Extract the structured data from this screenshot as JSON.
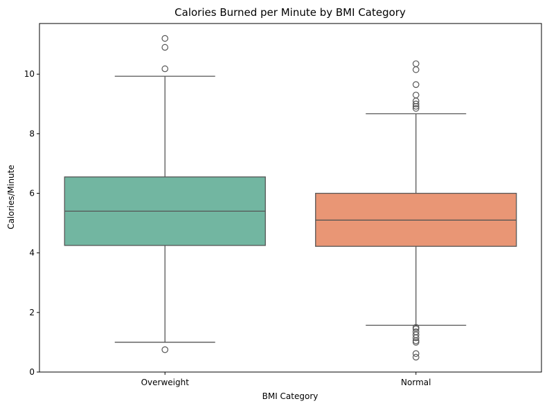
{
  "chart_data": {
    "type": "box",
    "title": "Calories Burned per Minute by BMI Category",
    "xlabel": "BMI Category",
    "ylabel": "Calories/Minute",
    "ylim": [
      0,
      11.7
    ],
    "yticks": [
      0,
      2,
      4,
      6,
      8,
      10
    ],
    "categories": [
      "Overweight",
      "Normal"
    ],
    "series": [
      {
        "category": "Overweight",
        "color": "#72b6a1",
        "whisker_low": 1.0,
        "q1": 4.25,
        "median": 5.4,
        "q3": 6.55,
        "whisker_high": 9.93,
        "outliers": [
          0.75,
          10.18,
          10.9,
          11.2
        ]
      },
      {
        "category": "Normal",
        "color": "#e99675",
        "whisker_low": 1.57,
        "q1": 4.22,
        "median": 5.1,
        "q3": 6.0,
        "whisker_high": 8.67,
        "outliers": [
          0.5,
          0.62,
          1.0,
          1.05,
          1.15,
          1.25,
          1.35,
          1.45,
          1.5,
          8.85,
          8.92,
          9.0,
          9.1,
          9.3,
          9.65,
          10.15,
          10.35
        ]
      }
    ]
  }
}
